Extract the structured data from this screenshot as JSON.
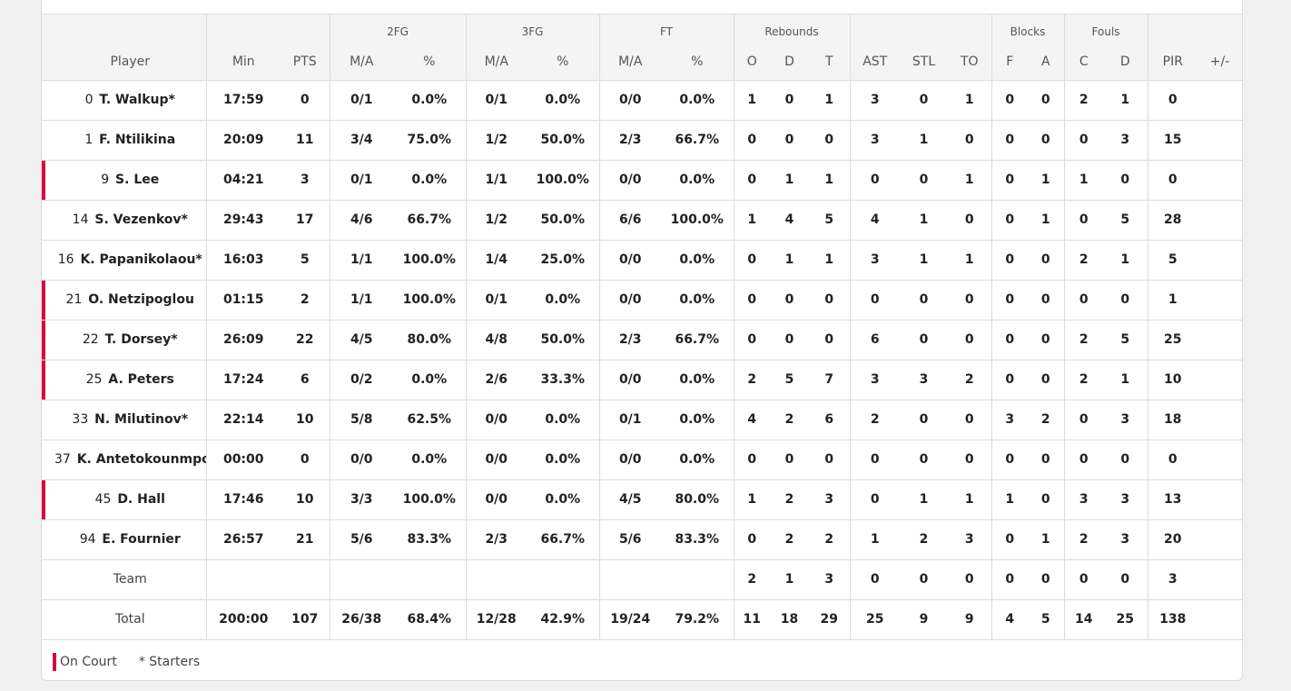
{
  "groups": {
    "fg2": "2FG",
    "fg3": "3FG",
    "ft": "FT",
    "rebounds": "Rebounds",
    "blocks": "Blocks",
    "fouls": "Fouls"
  },
  "columns": {
    "player": "Player",
    "min": "Min",
    "pts": "PTS",
    "fg2_ma": "M/A",
    "fg2_pct": "%",
    "fg3_ma": "M/A",
    "fg3_pct": "%",
    "ft_ma": "M/A",
    "ft_pct": "%",
    "reb_o": "O",
    "reb_d": "D",
    "reb_t": "T",
    "ast": "AST",
    "stl": "STL",
    "to": "TO",
    "blk_f": "F",
    "blk_a": "A",
    "foul_c": "C",
    "foul_d": "D",
    "pir": "PIR",
    "plusminus": "+/-"
  },
  "players": [
    {
      "num": "0",
      "name": "T. Walkup*",
      "on_court": false,
      "min": "17:59",
      "pts": "0",
      "fg2_ma": "0/1",
      "fg2_pct": "0.0%",
      "fg3_ma": "0/1",
      "fg3_pct": "0.0%",
      "ft_ma": "0/0",
      "ft_pct": "0.0%",
      "reb_o": "1",
      "reb_d": "0",
      "reb_t": "1",
      "ast": "3",
      "stl": "0",
      "to": "1",
      "blk_f": "0",
      "blk_a": "0",
      "foul_c": "2",
      "foul_d": "1",
      "pir": "0",
      "plusminus": ""
    },
    {
      "num": "1",
      "name": "F. Ntilikina",
      "on_court": false,
      "min": "20:09",
      "pts": "11",
      "fg2_ma": "3/4",
      "fg2_pct": "75.0%",
      "fg3_ma": "1/2",
      "fg3_pct": "50.0%",
      "ft_ma": "2/3",
      "ft_pct": "66.7%",
      "reb_o": "0",
      "reb_d": "0",
      "reb_t": "0",
      "ast": "3",
      "stl": "1",
      "to": "0",
      "blk_f": "0",
      "blk_a": "0",
      "foul_c": "0",
      "foul_d": "3",
      "pir": "15",
      "plusminus": ""
    },
    {
      "num": "9",
      "name": "S. Lee",
      "on_court": true,
      "min": "04:21",
      "pts": "3",
      "fg2_ma": "0/1",
      "fg2_pct": "0.0%",
      "fg3_ma": "1/1",
      "fg3_pct": "100.0%",
      "ft_ma": "0/0",
      "ft_pct": "0.0%",
      "reb_o": "0",
      "reb_d": "1",
      "reb_t": "1",
      "ast": "0",
      "stl": "0",
      "to": "1",
      "blk_f": "0",
      "blk_a": "1",
      "foul_c": "1",
      "foul_d": "0",
      "pir": "0",
      "plusminus": ""
    },
    {
      "num": "14",
      "name": "S. Vezenkov*",
      "on_court": false,
      "min": "29:43",
      "pts": "17",
      "fg2_ma": "4/6",
      "fg2_pct": "66.7%",
      "fg3_ma": "1/2",
      "fg3_pct": "50.0%",
      "ft_ma": "6/6",
      "ft_pct": "100.0%",
      "reb_o": "1",
      "reb_d": "4",
      "reb_t": "5",
      "ast": "4",
      "stl": "1",
      "to": "0",
      "blk_f": "0",
      "blk_a": "1",
      "foul_c": "0",
      "foul_d": "5",
      "pir": "28",
      "plusminus": ""
    },
    {
      "num": "16",
      "name": "K. Papanikolaou*",
      "on_court": false,
      "min": "16:03",
      "pts": "5",
      "fg2_ma": "1/1",
      "fg2_pct": "100.0%",
      "fg3_ma": "1/4",
      "fg3_pct": "25.0%",
      "ft_ma": "0/0",
      "ft_pct": "0.0%",
      "reb_o": "0",
      "reb_d": "1",
      "reb_t": "1",
      "ast": "3",
      "stl": "1",
      "to": "1",
      "blk_f": "0",
      "blk_a": "0",
      "foul_c": "2",
      "foul_d": "1",
      "pir": "5",
      "plusminus": ""
    },
    {
      "num": "21",
      "name": "O. Netzipoglou",
      "on_court": true,
      "min": "01:15",
      "pts": "2",
      "fg2_ma": "1/1",
      "fg2_pct": "100.0%",
      "fg3_ma": "0/1",
      "fg3_pct": "0.0%",
      "ft_ma": "0/0",
      "ft_pct": "0.0%",
      "reb_o": "0",
      "reb_d": "0",
      "reb_t": "0",
      "ast": "0",
      "stl": "0",
      "to": "0",
      "blk_f": "0",
      "blk_a": "0",
      "foul_c": "0",
      "foul_d": "0",
      "pir": "1",
      "plusminus": ""
    },
    {
      "num": "22",
      "name": "T. Dorsey*",
      "on_court": true,
      "min": "26:09",
      "pts": "22",
      "fg2_ma": "4/5",
      "fg2_pct": "80.0%",
      "fg3_ma": "4/8",
      "fg3_pct": "50.0%",
      "ft_ma": "2/3",
      "ft_pct": "66.7%",
      "reb_o": "0",
      "reb_d": "0",
      "reb_t": "0",
      "ast": "6",
      "stl": "0",
      "to": "0",
      "blk_f": "0",
      "blk_a": "0",
      "foul_c": "2",
      "foul_d": "5",
      "pir": "25",
      "plusminus": ""
    },
    {
      "num": "25",
      "name": "A. Peters",
      "on_court": true,
      "min": "17:24",
      "pts": "6",
      "fg2_ma": "0/2",
      "fg2_pct": "0.0%",
      "fg3_ma": "2/6",
      "fg3_pct": "33.3%",
      "ft_ma": "0/0",
      "ft_pct": "0.0%",
      "reb_o": "2",
      "reb_d": "5",
      "reb_t": "7",
      "ast": "3",
      "stl": "3",
      "to": "2",
      "blk_f": "0",
      "blk_a": "0",
      "foul_c": "2",
      "foul_d": "1",
      "pir": "10",
      "plusminus": ""
    },
    {
      "num": "33",
      "name": "N. Milutinov*",
      "on_court": false,
      "min": "22:14",
      "pts": "10",
      "fg2_ma": "5/8",
      "fg2_pct": "62.5%",
      "fg3_ma": "0/0",
      "fg3_pct": "0.0%",
      "ft_ma": "0/1",
      "ft_pct": "0.0%",
      "reb_o": "4",
      "reb_d": "2",
      "reb_t": "6",
      "ast": "2",
      "stl": "0",
      "to": "0",
      "blk_f": "3",
      "blk_a": "2",
      "foul_c": "0",
      "foul_d": "3",
      "pir": "18",
      "plusminus": ""
    },
    {
      "num": "37",
      "name": "K. Antetokounmpo",
      "on_court": false,
      "min": "00:00",
      "pts": "0",
      "fg2_ma": "0/0",
      "fg2_pct": "0.0%",
      "fg3_ma": "0/0",
      "fg3_pct": "0.0%",
      "ft_ma": "0/0",
      "ft_pct": "0.0%",
      "reb_o": "0",
      "reb_d": "0",
      "reb_t": "0",
      "ast": "0",
      "stl": "0",
      "to": "0",
      "blk_f": "0",
      "blk_a": "0",
      "foul_c": "0",
      "foul_d": "0",
      "pir": "0",
      "plusminus": ""
    },
    {
      "num": "45",
      "name": "D. Hall",
      "on_court": true,
      "min": "17:46",
      "pts": "10",
      "fg2_ma": "3/3",
      "fg2_pct": "100.0%",
      "fg3_ma": "0/0",
      "fg3_pct": "0.0%",
      "ft_ma": "4/5",
      "ft_pct": "80.0%",
      "reb_o": "1",
      "reb_d": "2",
      "reb_t": "3",
      "ast": "0",
      "stl": "1",
      "to": "1",
      "blk_f": "1",
      "blk_a": "0",
      "foul_c": "3",
      "foul_d": "3",
      "pir": "13",
      "plusminus": ""
    },
    {
      "num": "94",
      "name": "E. Fournier",
      "on_court": false,
      "min": "26:57",
      "pts": "21",
      "fg2_ma": "5/6",
      "fg2_pct": "83.3%",
      "fg3_ma": "2/3",
      "fg3_pct": "66.7%",
      "ft_ma": "5/6",
      "ft_pct": "83.3%",
      "reb_o": "0",
      "reb_d": "2",
      "reb_t": "2",
      "ast": "1",
      "stl": "2",
      "to": "3",
      "blk_f": "0",
      "blk_a": "1",
      "foul_c": "2",
      "foul_d": "3",
      "pir": "20",
      "plusminus": ""
    }
  ],
  "team": {
    "label": "Team",
    "min": "",
    "pts": "",
    "fg2_ma": "",
    "fg2_pct": "",
    "fg3_ma": "",
    "fg3_pct": "",
    "ft_ma": "",
    "ft_pct": "",
    "reb_o": "2",
    "reb_d": "1",
    "reb_t": "3",
    "ast": "0",
    "stl": "0",
    "to": "0",
    "blk_f": "0",
    "blk_a": "0",
    "foul_c": "0",
    "foul_d": "0",
    "pir": "3",
    "plusminus": ""
  },
  "total": {
    "label": "Total",
    "min": "200:00",
    "pts": "107",
    "fg2_ma": "26/38",
    "fg2_pct": "68.4%",
    "fg3_ma": "12/28",
    "fg3_pct": "42.9%",
    "ft_ma": "19/24",
    "ft_pct": "79.2%",
    "reb_o": "11",
    "reb_d": "18",
    "reb_t": "29",
    "ast": "25",
    "stl": "9",
    "to": "9",
    "blk_f": "4",
    "blk_a": "5",
    "foul_c": "14",
    "foul_d": "25",
    "pir": "138",
    "plusminus": ""
  },
  "legend": {
    "on_court": "On Court",
    "starters": "* Starters"
  },
  "colors": {
    "on_court_accent": "#d50a45",
    "header_bg": "#f4f4f4",
    "border": "#dcdcdc"
  }
}
